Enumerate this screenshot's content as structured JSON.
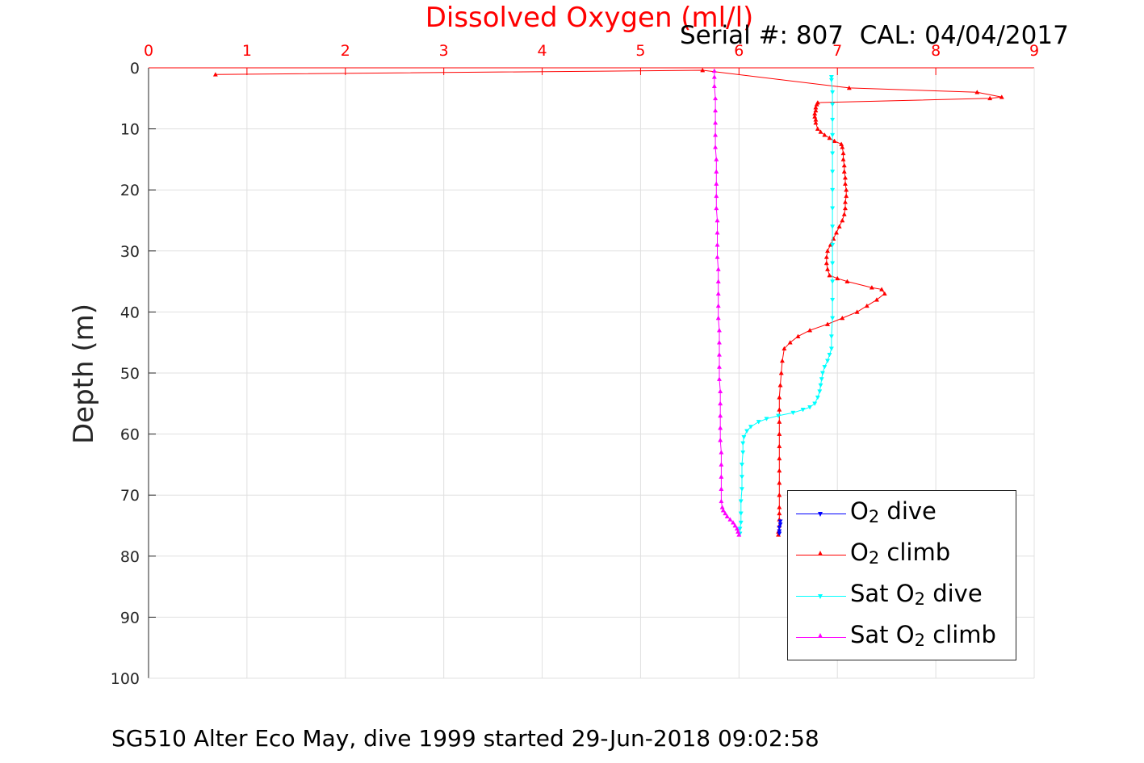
{
  "header": {
    "title": "Dissolved Oxygen (ml/l)",
    "serial": "Serial #: 807  CAL: 04/04/2017"
  },
  "footer": {
    "caption": "SG510 Alter Eco May, dive 1999 started 29-Jun-2018 09:02:58"
  },
  "chart_data": {
    "type": "line",
    "title": "Dissolved Oxygen (ml/l)",
    "xlabel": "",
    "ylabel": "Depth (m)",
    "xlim": [
      0,
      9
    ],
    "ylim": [
      0,
      100
    ],
    "y_reversed": true,
    "x_axis_position": "top",
    "xticks": [
      0,
      1,
      2,
      3,
      4,
      5,
      6,
      7,
      8,
      9
    ],
    "yticks": [
      0,
      10,
      20,
      30,
      40,
      50,
      60,
      70,
      80,
      90,
      100
    ],
    "grid": true,
    "legend_position": "bottom-right",
    "colors": {
      "xaxis": "#ff0000",
      "grid": "#e0e0e0"
    },
    "series": [
      {
        "name": "O2 dive",
        "label_main": "O",
        "label_sub": "2",
        "label_tail": " dive",
        "color": "#0000ff",
        "marker": "triangle-down",
        "points": [
          [
            6.42,
            74.3
          ],
          [
            6.42,
            74.8
          ],
          [
            6.41,
            75.3
          ],
          [
            6.41,
            75.9
          ],
          [
            6.41,
            76.3
          ]
        ]
      },
      {
        "name": "O2 climb",
        "label_main": "O",
        "label_sub": "2",
        "label_tail": " climb",
        "color": "#ff0000",
        "marker": "triangle-up",
        "points": [
          [
            6.4,
            76.5
          ],
          [
            6.4,
            76.0
          ],
          [
            6.41,
            75.0
          ],
          [
            6.41,
            74.0
          ],
          [
            6.41,
            73.0
          ],
          [
            6.41,
            72.0
          ],
          [
            6.41,
            70.0
          ],
          [
            6.41,
            68.0
          ],
          [
            6.41,
            66.0
          ],
          [
            6.41,
            64.0
          ],
          [
            6.41,
            62.0
          ],
          [
            6.41,
            60.0
          ],
          [
            6.41,
            58.0
          ],
          [
            6.41,
            56.0
          ],
          [
            6.41,
            54.0
          ],
          [
            6.42,
            52.0
          ],
          [
            6.43,
            50.0
          ],
          [
            6.44,
            48.0
          ],
          [
            6.46,
            46.0
          ],
          [
            6.52,
            45.0
          ],
          [
            6.6,
            44.0
          ],
          [
            6.72,
            43.0
          ],
          [
            6.9,
            42.0
          ],
          [
            7.05,
            41.0
          ],
          [
            7.2,
            40.0
          ],
          [
            7.3,
            39.0
          ],
          [
            7.4,
            38.0
          ],
          [
            7.48,
            37.0
          ],
          [
            7.45,
            36.3
          ],
          [
            7.35,
            36.0
          ],
          [
            7.1,
            35.0
          ],
          [
            7.0,
            34.5
          ],
          [
            6.92,
            34.0
          ],
          [
            6.9,
            33.0
          ],
          [
            6.89,
            32.0
          ],
          [
            6.89,
            31.0
          ],
          [
            6.9,
            30.0
          ],
          [
            6.93,
            29.0
          ],
          [
            6.96,
            28.0
          ],
          [
            6.99,
            27.0
          ],
          [
            7.02,
            26.0
          ],
          [
            7.05,
            25.0
          ],
          [
            7.07,
            24.0
          ],
          [
            7.08,
            23.0
          ],
          [
            7.08,
            22.0
          ],
          [
            7.09,
            21.0
          ],
          [
            7.09,
            20.0
          ],
          [
            7.08,
            19.0
          ],
          [
            7.08,
            18.0
          ],
          [
            7.07,
            17.0
          ],
          [
            7.07,
            16.0
          ],
          [
            7.06,
            15.0
          ],
          [
            7.06,
            14.0
          ],
          [
            7.05,
            13.0
          ],
          [
            7.04,
            12.5
          ],
          [
            6.97,
            12.0
          ],
          [
            6.92,
            11.5
          ],
          [
            6.87,
            11.0
          ],
          [
            6.83,
            10.5
          ],
          [
            6.8,
            10.0
          ],
          [
            6.78,
            9.0
          ],
          [
            6.78,
            8.5
          ],
          [
            6.77,
            8.0
          ],
          [
            6.77,
            7.5
          ],
          [
            6.78,
            7.0
          ],
          [
            6.78,
            6.5
          ],
          [
            6.79,
            6.0
          ],
          [
            6.8,
            5.7
          ],
          [
            8.55,
            5.0
          ],
          [
            8.67,
            4.8
          ],
          [
            8.42,
            4.0
          ],
          [
            7.12,
            3.3
          ],
          [
            5.63,
            0.4
          ],
          [
            0.68,
            1.1
          ]
        ]
      },
      {
        "name": "Sat O2 dive",
        "label_main": "Sat O",
        "label_sub": "2",
        "label_tail": " dive",
        "color": "#00ffff",
        "marker": "triangle-down",
        "points": [
          [
            6.94,
            1.5
          ],
          [
            6.94,
            2.0
          ],
          [
            6.95,
            4.0
          ],
          [
            6.95,
            6.0
          ],
          [
            6.95,
            8.5
          ],
          [
            6.95,
            11.0
          ],
          [
            6.95,
            14.0
          ],
          [
            6.95,
            17.0
          ],
          [
            6.95,
            20.0
          ],
          [
            6.95,
            23.0
          ],
          [
            6.95,
            26.0
          ],
          [
            6.95,
            29.0
          ],
          [
            6.95,
            32.0
          ],
          [
            6.95,
            35.0
          ],
          [
            6.95,
            38.0
          ],
          [
            6.95,
            41.0
          ],
          [
            6.94,
            44.0
          ],
          [
            6.94,
            46.0
          ],
          [
            6.92,
            47.0
          ],
          [
            6.9,
            48.0
          ],
          [
            6.87,
            49.0
          ],
          [
            6.85,
            50.0
          ],
          [
            6.84,
            51.0
          ],
          [
            6.83,
            52.0
          ],
          [
            6.82,
            53.0
          ],
          [
            6.8,
            54.0
          ],
          [
            6.77,
            55.0
          ],
          [
            6.72,
            55.6
          ],
          [
            6.65,
            56.0
          ],
          [
            6.55,
            56.5
          ],
          [
            6.4,
            57.0
          ],
          [
            6.28,
            57.5
          ],
          [
            6.2,
            58.0
          ],
          [
            6.12,
            58.8
          ],
          [
            6.08,
            59.5
          ],
          [
            6.05,
            60.5
          ],
          [
            6.04,
            61.5
          ],
          [
            6.04,
            63.0
          ],
          [
            6.03,
            65.0
          ],
          [
            6.03,
            67.0
          ],
          [
            6.03,
            69.0
          ],
          [
            6.02,
            71.0
          ],
          [
            6.02,
            73.0
          ],
          [
            6.02,
            74.5
          ],
          [
            6.01,
            75.5
          ],
          [
            6.01,
            76.3
          ]
        ]
      },
      {
        "name": "Sat O2 climb",
        "label_main": "Sat O",
        "label_sub": "2",
        "label_tail": " climb",
        "color": "#ff00ff",
        "marker": "triangle-up",
        "points": [
          [
            6.0,
            76.5
          ],
          [
            5.99,
            76.0
          ],
          [
            5.98,
            75.5
          ],
          [
            5.96,
            75.0
          ],
          [
            5.94,
            74.5
          ],
          [
            5.91,
            74.0
          ],
          [
            5.88,
            73.5
          ],
          [
            5.86,
            73.0
          ],
          [
            5.84,
            72.5
          ],
          [
            5.83,
            72.0
          ],
          [
            5.82,
            71.0
          ],
          [
            5.82,
            69.0
          ],
          [
            5.82,
            67.0
          ],
          [
            5.82,
            65.0
          ],
          [
            5.82,
            63.0
          ],
          [
            5.81,
            61.0
          ],
          [
            5.81,
            59.0
          ],
          [
            5.81,
            57.0
          ],
          [
            5.81,
            55.0
          ],
          [
            5.81,
            53.0
          ],
          [
            5.8,
            51.0
          ],
          [
            5.8,
            49.0
          ],
          [
            5.8,
            47.0
          ],
          [
            5.8,
            45.0
          ],
          [
            5.8,
            43.0
          ],
          [
            5.79,
            41.0
          ],
          [
            5.79,
            39.0
          ],
          [
            5.79,
            37.0
          ],
          [
            5.79,
            35.0
          ],
          [
            5.79,
            33.0
          ],
          [
            5.78,
            31.0
          ],
          [
            5.78,
            29.0
          ],
          [
            5.78,
            27.0
          ],
          [
            5.78,
            25.0
          ],
          [
            5.77,
            23.0
          ],
          [
            5.77,
            21.0
          ],
          [
            5.77,
            19.0
          ],
          [
            5.77,
            17.0
          ],
          [
            5.77,
            15.0
          ],
          [
            5.76,
            13.0
          ],
          [
            5.76,
            11.0
          ],
          [
            5.76,
            9.0
          ],
          [
            5.76,
            7.0
          ],
          [
            5.76,
            5.0
          ],
          [
            5.75,
            3.0
          ],
          [
            5.75,
            1.5
          ],
          [
            5.75,
            0.5
          ]
        ]
      }
    ]
  }
}
